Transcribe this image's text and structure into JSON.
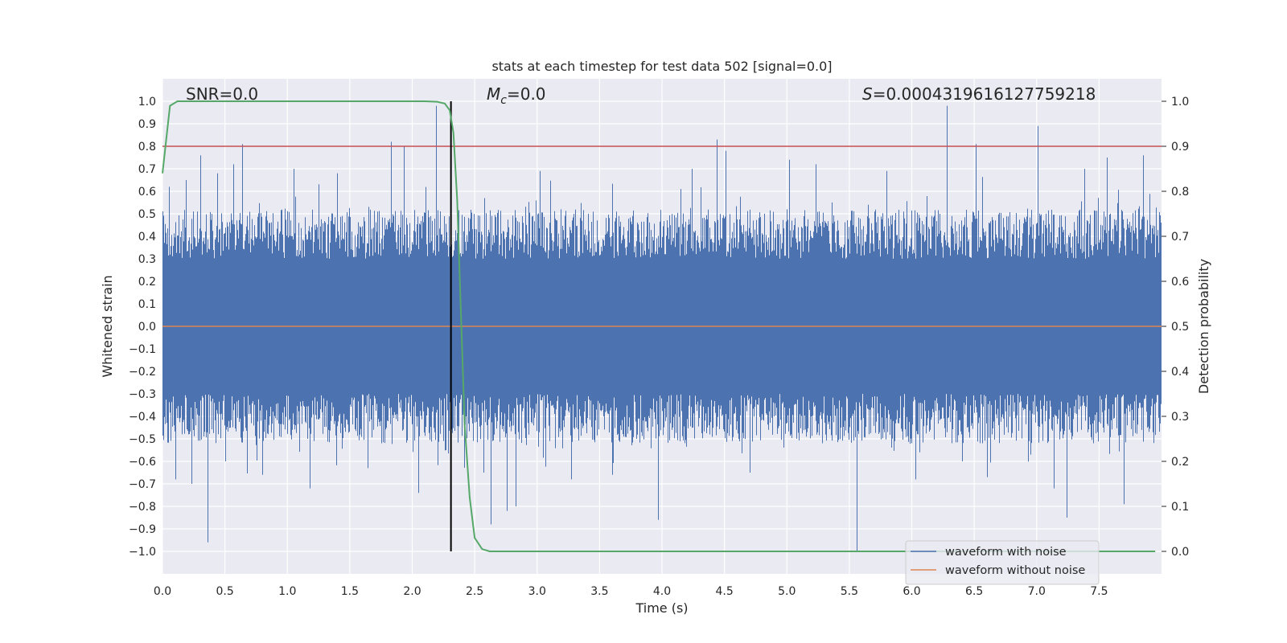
{
  "chart_data": {
    "type": "line",
    "title": "stats at each timestep for test data 502 [signal=0.0]",
    "xlabel": "Time (s)",
    "ylabel": "Whitened strain",
    "y2label": "Detection probability",
    "xlim": [
      0.0,
      8.0
    ],
    "ylim": [
      -1.1,
      1.1
    ],
    "y2lim": [
      -0.05,
      1.05
    ],
    "xticks": [
      "0.0",
      "0.5",
      "1.0",
      "1.5",
      "2.0",
      "2.5",
      "3.0",
      "3.5",
      "4.0",
      "4.5",
      "5.0",
      "5.5",
      "6.0",
      "6.5",
      "7.0",
      "7.5"
    ],
    "yticks": [
      "1.0",
      "0.9",
      "0.8",
      "0.7",
      "0.6",
      "0.5",
      "0.4",
      "0.3",
      "0.2",
      "0.1",
      "0.0",
      "−0.1",
      "−0.2",
      "−0.3",
      "−0.4",
      "−0.5",
      "−0.6",
      "−0.7",
      "−0.8",
      "−0.9",
      "−1.0"
    ],
    "y2ticks": [
      "1.0",
      "0.9",
      "0.8",
      "0.7",
      "0.6",
      "0.5",
      "0.4",
      "0.3",
      "0.2",
      "0.1",
      "0.0"
    ],
    "annotations": {
      "snr_label": "SNR=0.0",
      "mc_symbol": "M",
      "mc_subscript": "c",
      "mc_value": "=0.0",
      "s_symbol": "S",
      "s_value": "=0.00043196161277592​18"
    },
    "threshold": 0.9,
    "event_time": 2.31,
    "event_ymin": -1.0,
    "event_ymax": 1.0,
    "series": [
      {
        "name": "waveform with noise",
        "color": "#4c72b0",
        "sample_rate": 2048,
        "noise_band_typical": 0.4,
        "peaks": [
          {
            "t": 0.05,
            "v": 0.62
          },
          {
            "t": 0.1,
            "v": -0.68
          },
          {
            "t": 0.19,
            "v": 0.65
          },
          {
            "t": 0.23,
            "v": -0.7
          },
          {
            "t": 0.3,
            "v": 0.76
          },
          {
            "t": 0.36,
            "v": -0.96
          },
          {
            "t": 0.44,
            "v": 0.68
          },
          {
            "t": 0.5,
            "v": -0.6
          },
          {
            "t": 0.57,
            "v": 0.72
          },
          {
            "t": 0.64,
            "v": 0.81
          },
          {
            "t": 0.8,
            "v": -0.66
          },
          {
            "t": 1.05,
            "v": 0.7
          },
          {
            "t": 1.18,
            "v": -0.72
          },
          {
            "t": 1.4,
            "v": 0.68
          },
          {
            "t": 1.64,
            "v": -0.63
          },
          {
            "t": 1.83,
            "v": 0.82
          },
          {
            "t": 1.93,
            "v": 0.8
          },
          {
            "t": 2.05,
            "v": -0.74
          },
          {
            "t": 2.19,
            "v": 0.98
          },
          {
            "t": 2.27,
            "v": -0.55
          },
          {
            "t": 2.57,
            "v": -0.65
          },
          {
            "t": 2.63,
            "v": -0.88
          },
          {
            "t": 2.76,
            "v": -0.82
          },
          {
            "t": 2.83,
            "v": -0.8
          },
          {
            "t": 3.02,
            "v": 0.69
          },
          {
            "t": 3.27,
            "v": -0.68
          },
          {
            "t": 3.6,
            "v": -0.66
          },
          {
            "t": 3.97,
            "v": -0.86
          },
          {
            "t": 4.24,
            "v": 0.7
          },
          {
            "t": 4.44,
            "v": 0.83
          },
          {
            "t": 4.51,
            "v": 0.78
          },
          {
            "t": 4.7,
            "v": -0.65
          },
          {
            "t": 5.02,
            "v": 0.74
          },
          {
            "t": 5.23,
            "v": 0.72
          },
          {
            "t": 5.56,
            "v": -1.0
          },
          {
            "t": 5.8,
            "v": 0.69
          },
          {
            "t": 6.03,
            "v": -0.68
          },
          {
            "t": 6.28,
            "v": 0.98
          },
          {
            "t": 6.4,
            "v": -0.6
          },
          {
            "t": 6.51,
            "v": 0.81
          },
          {
            "t": 6.6,
            "v": -0.67
          },
          {
            "t": 7.01,
            "v": 0.89
          },
          {
            "t": 7.14,
            "v": -0.72
          },
          {
            "t": 7.24,
            "v": -0.85
          },
          {
            "t": 7.38,
            "v": 0.7
          },
          {
            "t": 7.56,
            "v": 0.75
          },
          {
            "t": 7.7,
            "v": -0.79
          },
          {
            "t": 7.85,
            "v": 0.76
          }
        ]
      },
      {
        "name": "waveform without noise",
        "color": "#dd8452",
        "constant": 0.0
      },
      {
        "name": "detection probability",
        "color": "#55a868",
        "axis": "right",
        "x": [
          0.0,
          0.06,
          0.12,
          0.2,
          0.5,
          1.0,
          1.5,
          2.0,
          2.1,
          2.2,
          2.26,
          2.3,
          2.33,
          2.36,
          2.39,
          2.42,
          2.46,
          2.5,
          2.56,
          2.62,
          3.0,
          4.0,
          5.0,
          6.0,
          7.0,
          7.95
        ],
        "y": [
          0.84,
          0.99,
          1.0,
          1.0,
          1.0,
          1.0,
          1.0,
          1.0,
          1.0,
          0.999,
          0.995,
          0.98,
          0.93,
          0.78,
          0.53,
          0.28,
          0.12,
          0.03,
          0.005,
          0.0,
          0.0,
          0.0,
          0.0,
          0.0,
          0.0,
          0.0
        ]
      }
    ],
    "legend": [
      "waveform with noise",
      "waveform without noise"
    ],
    "legend_position": "lower-right"
  }
}
